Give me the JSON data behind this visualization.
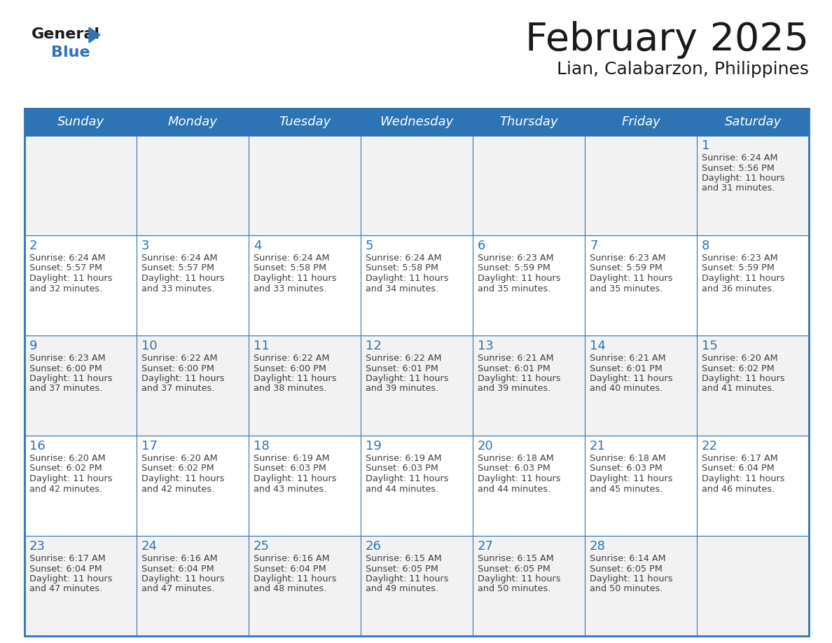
{
  "title": "February 2025",
  "subtitle": "Lian, Calabarzon, Philippines",
  "days_of_week": [
    "Sunday",
    "Monday",
    "Tuesday",
    "Wednesday",
    "Thursday",
    "Friday",
    "Saturday"
  ],
  "header_bg": "#2E74B5",
  "header_text": "#FFFFFF",
  "cell_bg_light": "#FFFFFF",
  "cell_bg_dark": "#F2F2F2",
  "border_color": "#2E74B5",
  "day_number_color": "#2E74B5",
  "text_color": "#404040",
  "title_color": "#1a1a1a",
  "logo_blue": "#2E74B5",
  "logo_black": "#1a1a1a",
  "calendar_data": [
    [
      null,
      null,
      null,
      null,
      null,
      null,
      {
        "day": 1,
        "sunrise": "6:24 AM",
        "sunset": "5:56 PM",
        "daylight": "11 hours\nand 31 minutes."
      }
    ],
    [
      {
        "day": 2,
        "sunrise": "6:24 AM",
        "sunset": "5:57 PM",
        "daylight": "11 hours\nand 32 minutes."
      },
      {
        "day": 3,
        "sunrise": "6:24 AM",
        "sunset": "5:57 PM",
        "daylight": "11 hours\nand 33 minutes."
      },
      {
        "day": 4,
        "sunrise": "6:24 AM",
        "sunset": "5:58 PM",
        "daylight": "11 hours\nand 33 minutes."
      },
      {
        "day": 5,
        "sunrise": "6:24 AM",
        "sunset": "5:58 PM",
        "daylight": "11 hours\nand 34 minutes."
      },
      {
        "day": 6,
        "sunrise": "6:23 AM",
        "sunset": "5:59 PM",
        "daylight": "11 hours\nand 35 minutes."
      },
      {
        "day": 7,
        "sunrise": "6:23 AM",
        "sunset": "5:59 PM",
        "daylight": "11 hours\nand 35 minutes."
      },
      {
        "day": 8,
        "sunrise": "6:23 AM",
        "sunset": "5:59 PM",
        "daylight": "11 hours\nand 36 minutes."
      }
    ],
    [
      {
        "day": 9,
        "sunrise": "6:23 AM",
        "sunset": "6:00 PM",
        "daylight": "11 hours\nand 37 minutes."
      },
      {
        "day": 10,
        "sunrise": "6:22 AM",
        "sunset": "6:00 PM",
        "daylight": "11 hours\nand 37 minutes."
      },
      {
        "day": 11,
        "sunrise": "6:22 AM",
        "sunset": "6:00 PM",
        "daylight": "11 hours\nand 38 minutes."
      },
      {
        "day": 12,
        "sunrise": "6:22 AM",
        "sunset": "6:01 PM",
        "daylight": "11 hours\nand 39 minutes."
      },
      {
        "day": 13,
        "sunrise": "6:21 AM",
        "sunset": "6:01 PM",
        "daylight": "11 hours\nand 39 minutes."
      },
      {
        "day": 14,
        "sunrise": "6:21 AM",
        "sunset": "6:01 PM",
        "daylight": "11 hours\nand 40 minutes."
      },
      {
        "day": 15,
        "sunrise": "6:20 AM",
        "sunset": "6:02 PM",
        "daylight": "11 hours\nand 41 minutes."
      }
    ],
    [
      {
        "day": 16,
        "sunrise": "6:20 AM",
        "sunset": "6:02 PM",
        "daylight": "11 hours\nand 42 minutes."
      },
      {
        "day": 17,
        "sunrise": "6:20 AM",
        "sunset": "6:02 PM",
        "daylight": "11 hours\nand 42 minutes."
      },
      {
        "day": 18,
        "sunrise": "6:19 AM",
        "sunset": "6:03 PM",
        "daylight": "11 hours\nand 43 minutes."
      },
      {
        "day": 19,
        "sunrise": "6:19 AM",
        "sunset": "6:03 PM",
        "daylight": "11 hours\nand 44 minutes."
      },
      {
        "day": 20,
        "sunrise": "6:18 AM",
        "sunset": "6:03 PM",
        "daylight": "11 hours\nand 44 minutes."
      },
      {
        "day": 21,
        "sunrise": "6:18 AM",
        "sunset": "6:03 PM",
        "daylight": "11 hours\nand 45 minutes."
      },
      {
        "day": 22,
        "sunrise": "6:17 AM",
        "sunset": "6:04 PM",
        "daylight": "11 hours\nand 46 minutes."
      }
    ],
    [
      {
        "day": 23,
        "sunrise": "6:17 AM",
        "sunset": "6:04 PM",
        "daylight": "11 hours\nand 47 minutes."
      },
      {
        "day": 24,
        "sunrise": "6:16 AM",
        "sunset": "6:04 PM",
        "daylight": "11 hours\nand 47 minutes."
      },
      {
        "day": 25,
        "sunrise": "6:16 AM",
        "sunset": "6:04 PM",
        "daylight": "11 hours\nand 48 minutes."
      },
      {
        "day": 26,
        "sunrise": "6:15 AM",
        "sunset": "6:05 PM",
        "daylight": "11 hours\nand 49 minutes."
      },
      {
        "day": 27,
        "sunrise": "6:15 AM",
        "sunset": "6:05 PM",
        "daylight": "11 hours\nand 50 minutes."
      },
      {
        "day": 28,
        "sunrise": "6:14 AM",
        "sunset": "6:05 PM",
        "daylight": "11 hours\nand 50 minutes."
      },
      null
    ]
  ]
}
